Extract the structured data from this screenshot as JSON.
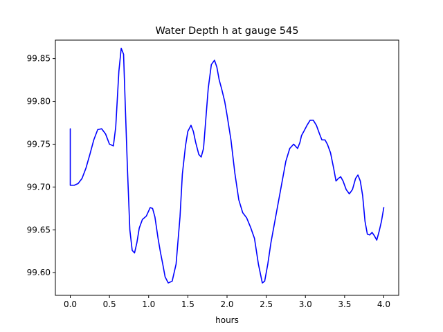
{
  "chart_data": {
    "type": "line",
    "title": "Water Depth h at gauge 545",
    "xlabel": "hours",
    "ylabel": "",
    "xlim": [
      -0.19,
      4.19
    ],
    "ylim": [
      99.5735,
      99.8715
    ],
    "xticks": [
      0.0,
      0.5,
      1.0,
      1.5,
      2.0,
      2.5,
      3.0,
      3.5,
      4.0
    ],
    "xtick_labels": [
      "0.0",
      "0.5",
      "1.0",
      "1.5",
      "2.0",
      "2.5",
      "3.0",
      "3.5",
      "4.0"
    ],
    "yticks": [
      99.6,
      99.65,
      99.7,
      99.75,
      99.8,
      99.85
    ],
    "ytick_labels": [
      "99.60",
      "99.65",
      "99.70",
      "99.75",
      "99.80",
      "99.85"
    ],
    "grid": false,
    "legend": "none",
    "series": [
      {
        "color": "#0000ff",
        "x": [
          0.0,
          0.0,
          0.0,
          0.05,
          0.1,
          0.15,
          0.2,
          0.25,
          0.3,
          0.35,
          0.4,
          0.45,
          0.5,
          0.55,
          0.58,
          0.62,
          0.65,
          0.68,
          0.7,
          0.73,
          0.76,
          0.79,
          0.82,
          0.85,
          0.88,
          0.92,
          0.97,
          1.02,
          1.05,
          1.08,
          1.12,
          1.15,
          1.18,
          1.21,
          1.25,
          1.3,
          1.35,
          1.4,
          1.43,
          1.47,
          1.5,
          1.54,
          1.57,
          1.6,
          1.64,
          1.67,
          1.7,
          1.73,
          1.76,
          1.8,
          1.84,
          1.87,
          1.9,
          1.93,
          1.97,
          2.0,
          2.05,
          2.1,
          2.15,
          2.2,
          2.25,
          2.3,
          2.35,
          2.4,
          2.45,
          2.48,
          2.52,
          2.56,
          2.6,
          2.65,
          2.7,
          2.75,
          2.8,
          2.85,
          2.9,
          2.93,
          2.95,
          2.98,
          3.02,
          3.06,
          3.1,
          3.14,
          3.18,
          3.21,
          3.25,
          3.28,
          3.32,
          3.36,
          3.39,
          3.42,
          3.45,
          3.48,
          3.52,
          3.56,
          3.6,
          3.64,
          3.67,
          3.7,
          3.73,
          3.76,
          3.79,
          3.82,
          3.85,
          3.88,
          3.91,
          3.94,
          3.97,
          4.0
        ],
        "y": [
          99.768,
          99.735,
          99.702,
          99.702,
          99.704,
          99.71,
          99.722,
          99.738,
          99.755,
          99.767,
          99.768,
          99.762,
          99.75,
          99.748,
          99.77,
          99.835,
          99.862,
          99.855,
          99.8,
          99.72,
          99.65,
          99.626,
          99.623,
          99.635,
          99.652,
          99.662,
          99.666,
          99.676,
          99.675,
          99.665,
          99.64,
          99.624,
          99.61,
          99.595,
          99.588,
          99.59,
          99.61,
          99.665,
          99.715,
          99.748,
          99.765,
          99.772,
          99.765,
          99.752,
          99.738,
          99.735,
          99.745,
          99.78,
          99.815,
          99.843,
          99.848,
          99.84,
          99.825,
          99.815,
          99.8,
          99.784,
          99.755,
          99.716,
          99.685,
          99.67,
          99.664,
          99.653,
          99.64,
          99.61,
          99.588,
          99.59,
          99.61,
          99.635,
          99.655,
          99.68,
          99.705,
          99.73,
          99.745,
          99.75,
          99.745,
          99.752,
          99.76,
          99.765,
          99.772,
          99.778,
          99.778,
          99.772,
          99.762,
          99.755,
          99.755,
          99.75,
          99.74,
          99.722,
          99.707,
          99.71,
          99.712,
          99.707,
          99.697,
          99.692,
          99.697,
          99.71,
          99.714,
          99.707,
          99.69,
          99.66,
          99.645,
          99.644,
          99.647,
          99.643,
          99.638,
          99.648,
          99.66,
          99.676
        ]
      }
    ]
  }
}
